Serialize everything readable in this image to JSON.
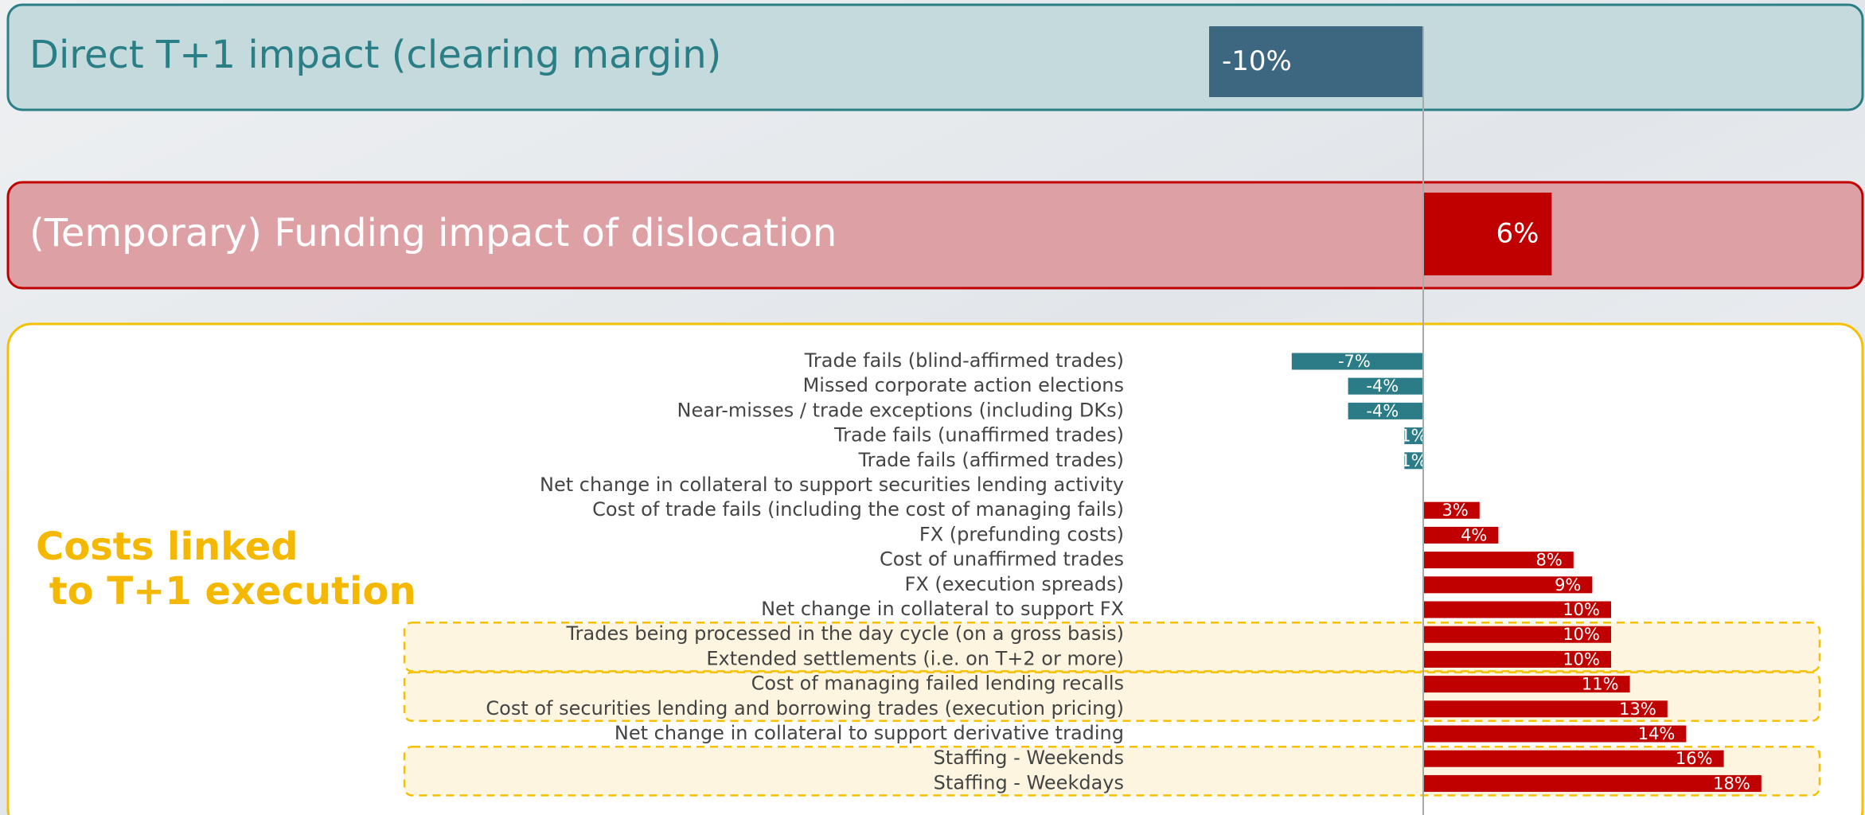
{
  "chart_data": [
    {
      "type": "bar",
      "title": "Direct T+1 impact (clearing margin)",
      "values": [
        -10
      ],
      "value_labels": [
        "-10%"
      ],
      "color": "#3d6680",
      "xlim": [
        -20,
        20
      ]
    },
    {
      "type": "bar",
      "title": "(Temporary) Funding impact of dislocation",
      "values": [
        6
      ],
      "value_labels": [
        "6%"
      ],
      "color": "#c00000",
      "xlim": [
        -20,
        20
      ]
    },
    {
      "type": "bar",
      "title": [
        "Costs linked",
        " to T+1 execution"
      ],
      "categories": [
        "Trade fails (blind-affirmed trades)",
        "Missed corporate action elections",
        "Near-misses / trade exceptions (including DKs)",
        "Trade fails (unaffirmed trades)",
        "Trade fails (affirmed trades)",
        "Net change in collateral to support securities lending activity",
        "Cost of trade fails (including the cost of managing fails)",
        "FX (prefunding costs)",
        "Cost of unaffirmed trades",
        "FX (execution spreads)",
        "Net change in collateral to support FX",
        "Trades being processed in the day cycle (on a gross basis)",
        "Extended settlements (i.e. on T+2 or more)",
        "Cost of managing failed lending recalls",
        "Cost of securities lending and borrowing trades (execution pricing)",
        "Net change in collateral to support derivative trading",
        "Staffing - Weekends",
        "Staffing - Weekdays"
      ],
      "values": [
        -7,
        -4,
        -4,
        -1,
        -1,
        0,
        3,
        4,
        8,
        9,
        10,
        10,
        10,
        11,
        13,
        14,
        16,
        18
      ],
      "value_labels": [
        "-7%",
        "-4%",
        "-4%",
        "-1%",
        "-1%",
        null,
        "3%",
        "4%",
        "8%",
        "9%",
        "10%",
        "10%",
        "10%",
        "11%",
        "13%",
        "14%",
        "16%",
        "18%"
      ],
      "color": "#c00000",
      "negative_color": "#2b7c86",
      "xlim": [
        -20,
        20
      ]
    }
  ]
}
